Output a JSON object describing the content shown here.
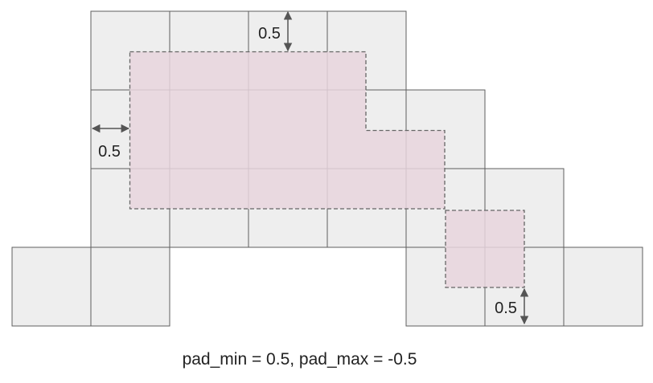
{
  "grid": {
    "rows": [
      {
        "row": 0,
        "cols": [
          1,
          2,
          3,
          4
        ]
      },
      {
        "row": 1,
        "cols": [
          1,
          2,
          3,
          4,
          5
        ]
      },
      {
        "row": 2,
        "cols": [
          1,
          2,
          3,
          4,
          5,
          6
        ]
      },
      {
        "row": 3,
        "cols": [
          0,
          1,
          5,
          6,
          7
        ]
      }
    ],
    "cell_fill": "#eeeeee",
    "cell_stroke": "#5f5f5f"
  },
  "padded_region": {
    "fill": "#e8d5dd",
    "stroke": "#666666"
  },
  "annotations": {
    "top": "0.5",
    "left": "0.5",
    "bottom": "0.5"
  },
  "caption": "pad_min = 0.5, pad_max = -0.5"
}
